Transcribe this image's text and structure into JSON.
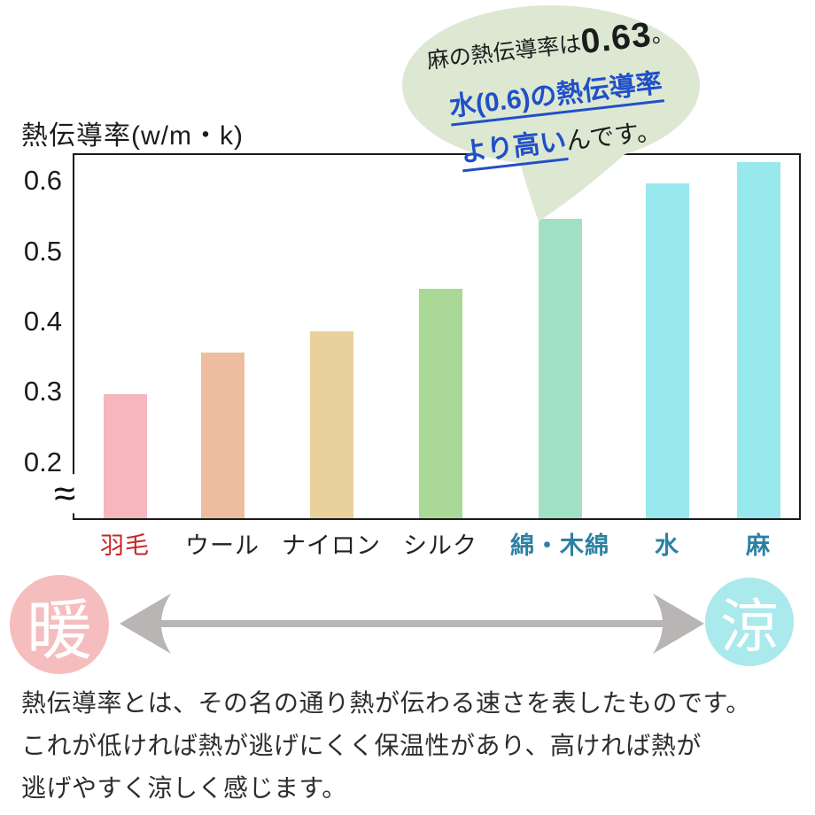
{
  "axis_title": "熱伝導率(w/m・k)",
  "chart_data": {
    "type": "bar",
    "title": "熱伝導率(w/m・k)",
    "ylabel": "熱伝導率 (w/m・k)",
    "categories": [
      "羽毛",
      "ウール",
      "ナイロン",
      "シルク",
      "綿・木綿",
      "水",
      "麻"
    ],
    "values": [
      0.3,
      0.36,
      0.39,
      0.45,
      0.55,
      0.6,
      0.63
    ],
    "bar_colors": [
      "#f6b6bd",
      "#eebda0",
      "#e9d19e",
      "#aad896",
      "#a2e0c3",
      "#97e9ee",
      "#97e9ee"
    ],
    "label_colors": [
      "#c92526",
      "#222222",
      "#222222",
      "#222222",
      "#2b81a4",
      "#2b81a4",
      "#2b81a4"
    ],
    "label_bold": [
      false,
      false,
      false,
      false,
      true,
      true,
      true
    ],
    "yticks": [
      "0.6",
      "0.5",
      "0.4",
      "0.3",
      "0.2"
    ],
    "ylim_visible": [
      0.2,
      0.6
    ],
    "axis_break_glyph": "≈",
    "grid": false,
    "legend": false
  },
  "bubble": {
    "line1_text": "麻の熱伝導率は",
    "line1_value": "0.63",
    "line1_period": "。",
    "line2_text": "水(0.6)の熱伝導率",
    "line3_highlight": "より高い",
    "line3_tail": "んです。",
    "fill_color": "#dde8d3",
    "blue_color": "#2050c8"
  },
  "scale": {
    "warm_label": "暖",
    "cool_label": "涼",
    "warm_color": "#f6bdbf",
    "cool_color": "#aae9ec",
    "arrow_color": "#b9b5b5"
  },
  "description": {
    "lines": [
      "熱伝導率とは、その名の通り熱が伝わる速さを表したものです。",
      "これが低ければ熱が逃げにくく保温性があり、高ければ熱が",
      "逃げやすく涼しく感じます。"
    ]
  }
}
